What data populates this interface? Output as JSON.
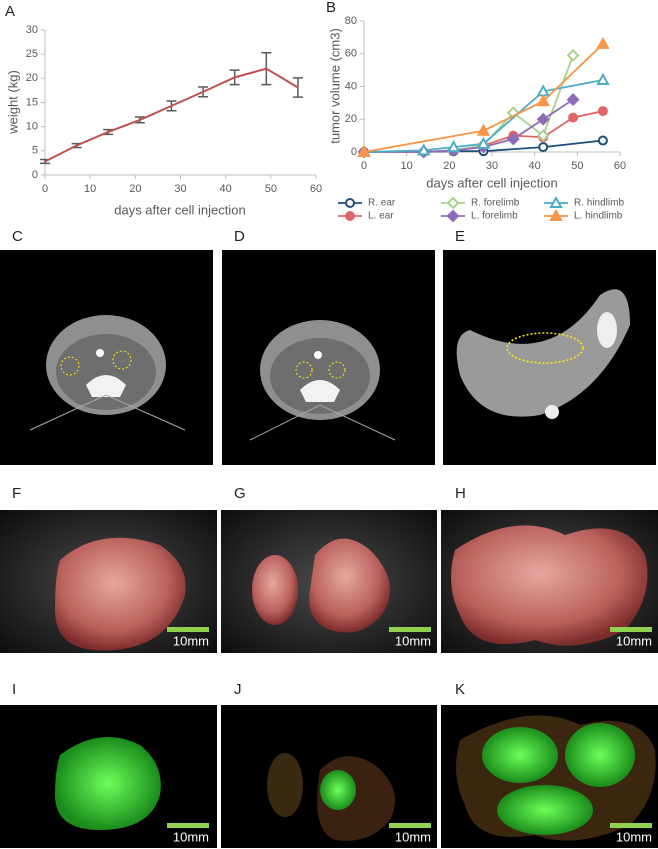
{
  "chart_data": [
    {
      "type": "line",
      "title": "A",
      "x_label": "days after cell injection",
      "y_label": "weight (kg)",
      "x": [
        0,
        7,
        14,
        21,
        28,
        35,
        42,
        49,
        56
      ],
      "values": [
        2.8,
        6.1,
        8.9,
        11.4,
        14.3,
        17.2,
        20.2,
        22,
        18.1
      ],
      "errors": [
        0.4,
        0.4,
        0.5,
        0.6,
        1.0,
        1.0,
        1.5,
        3.3,
        2.0
      ],
      "color": "#c0504d",
      "error_color": "#595959",
      "xlim": [
        0,
        60
      ],
      "xticks": [
        0,
        10,
        20,
        30,
        40,
        50,
        60
      ],
      "ylim": [
        0,
        30
      ],
      "yticks": [
        0,
        5,
        10,
        15,
        20,
        25,
        30
      ]
    },
    {
      "type": "line",
      "title": "B",
      "x_label": "days after cell injection",
      "y_label": "tumor volume (cm3)",
      "xlim": [
        0,
        60
      ],
      "xticks": [
        0,
        10,
        20,
        30,
        40,
        50,
        60
      ],
      "ylim": [
        0,
        80
      ],
      "yticks": [
        0,
        20,
        40,
        60,
        80
      ],
      "legend": "bottom",
      "series": [
        {
          "name": "R. ear",
          "color": "#1f4e79",
          "marker": "circle",
          "filled": false,
          "x": [
            0,
            14,
            21,
            28,
            42,
            56
          ],
          "values": [
            0,
            0,
            0.5,
            0.5,
            3,
            7
          ]
        },
        {
          "name": "L. ear",
          "color": "#e06666",
          "marker": "circle",
          "filled": true,
          "x": [
            0,
            14,
            21,
            28,
            35,
            42,
            49,
            56
          ],
          "values": [
            0,
            0,
            1,
            4,
            10,
            9,
            21,
            25
          ]
        },
        {
          "name": "R. forelimb",
          "color": "#a9d18e",
          "marker": "diamond",
          "filled": false,
          "x": [
            0,
            14,
            21,
            28,
            35,
            42,
            49
          ],
          "values": [
            0,
            0,
            1,
            4,
            24,
            10,
            59
          ]
        },
        {
          "name": "L. forelimb",
          "color": "#8e6bb8",
          "marker": "diamond",
          "filled": true,
          "x": [
            0,
            14,
            21,
            28,
            35,
            42,
            49
          ],
          "values": [
            0,
            0,
            1,
            3,
            8,
            20,
            32
          ]
        },
        {
          "name": "R. hindlimb",
          "color": "#4bacc6",
          "marker": "triangle",
          "filled": false,
          "x": [
            0,
            14,
            21,
            28,
            42,
            56
          ],
          "values": [
            0,
            1,
            3,
            5,
            37,
            44
          ]
        },
        {
          "name": "L. hindlimb",
          "color": "#f79646",
          "marker": "triangle",
          "filled": true,
          "x": [
            0,
            28,
            42,
            56
          ],
          "values": [
            0,
            13,
            31,
            66
          ]
        }
      ]
    }
  ],
  "panels": [
    {
      "label": "C"
    },
    {
      "label": "D"
    },
    {
      "label": "E"
    },
    {
      "label": "F",
      "scale_label": "10mm"
    },
    {
      "label": "G",
      "scale_label": "10mm"
    },
    {
      "label": "H",
      "scale_label": "10mm"
    },
    {
      "label": "I",
      "scale_label": "10mm"
    },
    {
      "label": "J",
      "scale_label": "10mm"
    },
    {
      "label": "K",
      "scale_label": "10mm"
    }
  ]
}
